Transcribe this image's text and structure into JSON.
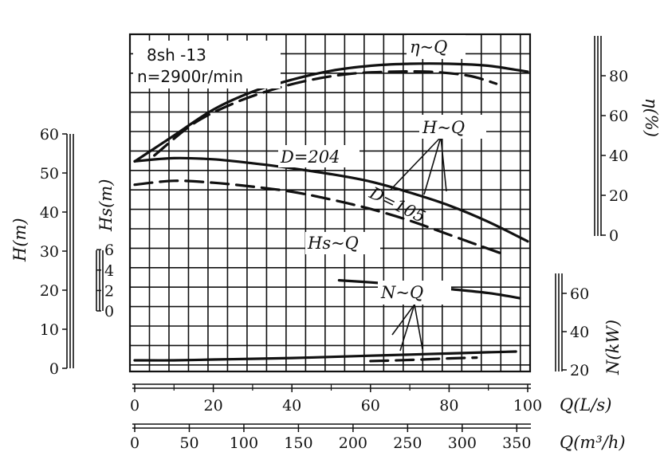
{
  "chart_data": {
    "type": "line",
    "info_line1": "8sh -13",
    "info_line2": "n=2900r/min",
    "x": {
      "label": "Q(L/s)",
      "range": [
        0,
        100
      ],
      "ticks": [
        "0",
        "20",
        "40",
        "60",
        "80",
        "100"
      ]
    },
    "x2": {
      "label": "Q(m³/h)",
      "range": [
        0,
        360
      ],
      "ticks": [
        "0",
        "50",
        "100",
        "150",
        "200",
        "250",
        "300",
        "350"
      ]
    },
    "axes": {
      "H": {
        "label": "H(m)",
        "range": [
          0,
          60
        ],
        "ticks": [
          "0",
          "10",
          "20",
          "30",
          "40",
          "50",
          "60"
        ]
      },
      "Hs": {
        "label": "Hs(m)",
        "range": [
          0,
          6
        ],
        "ticks": [
          "0",
          "2",
          "4",
          "6"
        ]
      },
      "eta": {
        "label": "η(%)",
        "range": [
          0,
          100
        ],
        "ticks": [
          "0",
          "20",
          "40",
          "60",
          "80"
        ]
      },
      "N": {
        "label": "N(kW)",
        "range": [
          20,
          70
        ],
        "ticks": [
          "20",
          "40",
          "60"
        ]
      }
    },
    "curve_labels": {
      "eta": "η~Q",
      "h": "H~Q",
      "d1": "D=204",
      "d2": "D=105",
      "hs": "Hs~Q",
      "n": "N~Q"
    },
    "series": [
      {
        "curve": "eta-Q",
        "impeller": "D=204",
        "style": "solid",
        "x": [
          0,
          10,
          20,
          30,
          40,
          50,
          60,
          70,
          80,
          90,
          100
        ],
        "y": [
          37,
          50,
          63,
          72,
          78,
          82.5,
          85,
          86,
          86,
          85,
          82
        ]
      },
      {
        "curve": "eta-Q",
        "impeller": "D=105",
        "style": "dashed",
        "x": [
          5,
          15,
          25,
          35,
          45,
          55,
          65,
          75,
          85,
          92
        ],
        "y": [
          40,
          56,
          66,
          73,
          78,
          81,
          82,
          82,
          80,
          76
        ]
      },
      {
        "curve": "H-Q",
        "impeller": "D=204",
        "style": "solid",
        "x": [
          0,
          10,
          20,
          30,
          40,
          50,
          60,
          70,
          80,
          90,
          100
        ],
        "y": [
          53,
          53.8,
          53.5,
          52.5,
          51.2,
          49.7,
          47.8,
          45,
          41.7,
          37.5,
          32.5
        ]
      },
      {
        "curve": "H-Q",
        "impeller": "D=105",
        "style": "dashed",
        "x": [
          0,
          10,
          20,
          30,
          40,
          50,
          60,
          70,
          80,
          93
        ],
        "y": [
          47,
          48,
          47.5,
          46.5,
          45.2,
          43.2,
          40.8,
          37.8,
          34.2,
          29.5
        ]
      },
      {
        "curve": "Hs-Q",
        "impeller": "D=204",
        "style": "solid",
        "x": [
          52,
          60,
          70,
          80,
          90,
          98
        ],
        "y": [
          3,
          2.8,
          2.5,
          2.15,
          1.75,
          1.25
        ]
      },
      {
        "curve": "N-Q",
        "impeller": "D=204",
        "style": "solid",
        "x": [
          0,
          10,
          20,
          30,
          40,
          50,
          60,
          70,
          80,
          90,
          97
        ],
        "y": [
          25,
          25,
          25.4,
          25.8,
          26.2,
          26.8,
          27.4,
          28,
          28.6,
          29.2,
          29.6
        ]
      },
      {
        "curve": "N-Q",
        "impeller": "D=105",
        "style": "dashed",
        "x": [
          60,
          70,
          80,
          87
        ],
        "y": [
          24.6,
          25.2,
          26,
          26.4
        ]
      }
    ],
    "grid": true
  }
}
